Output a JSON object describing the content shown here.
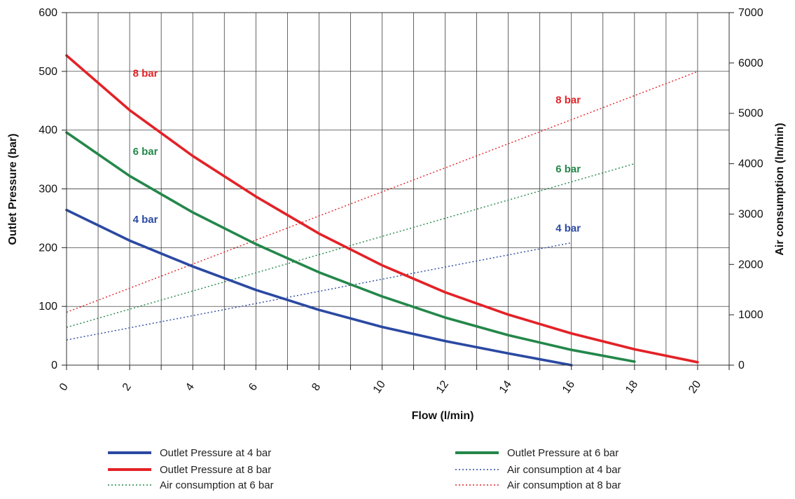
{
  "chart_data": {
    "type": "line",
    "xlabel": "Flow  (l/min)",
    "ylabel": "Outlet Pressure (bar)",
    "y2label": "Air consumption (ln/min)",
    "xlim": [
      0,
      21
    ],
    "ylim": [
      0,
      600
    ],
    "y2lim": [
      0,
      7000
    ],
    "x_ticks": [
      0,
      2,
      4,
      6,
      8,
      10,
      12,
      14,
      16,
      18,
      20
    ],
    "y_ticks": [
      0,
      100,
      200,
      300,
      400,
      500,
      600
    ],
    "y2_ticks": [
      0,
      1000,
      2000,
      3000,
      4000,
      5000,
      6000,
      7000
    ],
    "grid": true,
    "legend_position": "bottom",
    "colors": {
      "blue": "#2b49a3",
      "red": "#e32227",
      "green": "#24874a"
    },
    "series": [
      {
        "name": "Outlet Pressure at 4 bar",
        "axis": "left",
        "style": "solid",
        "color": "blue",
        "x": [
          0,
          2,
          4,
          6,
          8,
          10,
          12,
          14,
          16
        ],
        "y": [
          264,
          212,
          168,
          128,
          94,
          65,
          41,
          20,
          0
        ]
      },
      {
        "name": "Outlet Pressure at 6 bar",
        "axis": "left",
        "style": "solid",
        "color": "green",
        "x": [
          0,
          2,
          4,
          6,
          8,
          10,
          12,
          14,
          16,
          18
        ],
        "y": [
          396,
          322,
          260,
          206,
          158,
          117,
          81,
          51,
          26,
          6
        ]
      },
      {
        "name": "Outlet Pressure at 8 bar",
        "axis": "left",
        "style": "solid",
        "color": "red",
        "x": [
          0,
          2,
          4,
          6,
          8,
          10,
          12,
          14,
          16,
          18,
          20
        ],
        "y": [
          527,
          434,
          356,
          287,
          224,
          170,
          124,
          86,
          54,
          27,
          5
        ]
      },
      {
        "name": "Air consumption at 4 bar",
        "axis": "right",
        "style": "dotted",
        "color": "blue",
        "x": [
          0,
          16
        ],
        "y": [
          500,
          2430
        ]
      },
      {
        "name": "Air consumption at 6 bar",
        "axis": "right",
        "style": "dotted",
        "color": "green",
        "x": [
          0,
          18
        ],
        "y": [
          750,
          4000
        ]
      },
      {
        "name": "Air consumption at 8 bar",
        "axis": "right",
        "style": "dotted",
        "color": "red",
        "x": [
          0,
          20
        ],
        "y": [
          1050,
          5830
        ]
      }
    ],
    "annotations": [
      {
        "text": "8 bar",
        "color": "red",
        "x": 2.1,
        "y": 497,
        "axis": "left"
      },
      {
        "text": "6 bar",
        "color": "green",
        "x": 2.1,
        "y": 364,
        "axis": "left"
      },
      {
        "text": "4 bar",
        "color": "blue",
        "x": 2.1,
        "y": 248,
        "axis": "left"
      },
      {
        "text": "8 bar",
        "color": "red",
        "x": 15.5,
        "y": 5270,
        "axis": "right"
      },
      {
        "text": "6 bar",
        "color": "green",
        "x": 15.5,
        "y": 3900,
        "axis": "right"
      },
      {
        "text": "4 bar",
        "color": "blue",
        "x": 15.5,
        "y": 2720,
        "axis": "right"
      }
    ],
    "legend_layout": [
      [
        "Outlet Pressure at 4 bar",
        "Outlet Pressure at 6 bar"
      ],
      [
        "Outlet Pressure at 8 bar",
        "Air consumption at 4 bar"
      ],
      [
        "Air consumption at 6 bar",
        "Air consumption at 8 bar"
      ]
    ]
  }
}
